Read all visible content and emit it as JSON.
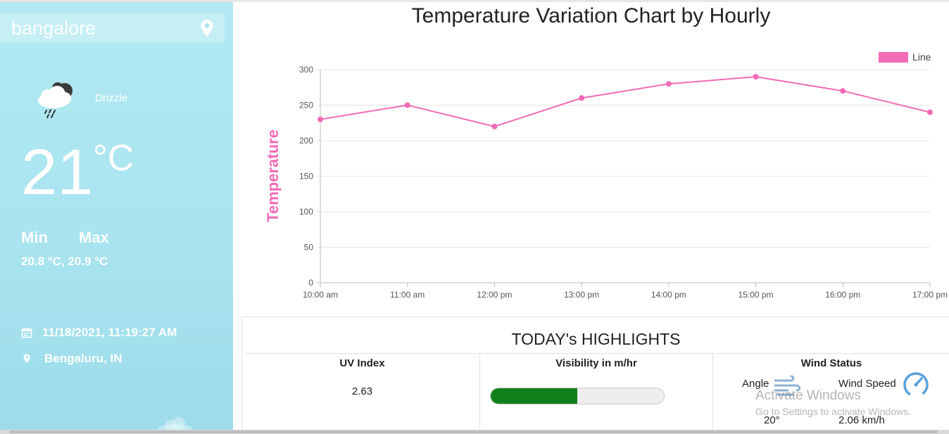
{
  "sidebar": {
    "search": {
      "value": "bangalore",
      "placeholder": "bangalore"
    },
    "condition": "Drizzle",
    "temperature": "21",
    "temp_unit": "°C",
    "min_label": "Min",
    "max_label": "Max",
    "minmax_values": "20.8 °C, 20.9 °C",
    "datetime": "11/18/2021, 11:19:27 AM",
    "location": "Bengaluru, IN"
  },
  "chart": {
    "title": "Temperature Variation Chart by Hourly"
  },
  "chart_data": {
    "type": "line",
    "title": "Temperature Variation Chart by Hourly",
    "ylabel": "Temperature",
    "xlabel": "",
    "categories": [
      "10:00 am",
      "11:00 am",
      "12:00 pm",
      "13:00 pm",
      "14:00 pm",
      "15:00 pm",
      "16:00 pm",
      "17:00 pm"
    ],
    "series": [
      {
        "name": "Line",
        "values": [
          230,
          250,
          220,
          260,
          280,
          290,
          270,
          240
        ],
        "color": "#f26bb5"
      }
    ],
    "ylim": [
      0,
      300
    ],
    "yticks": [
      0,
      50,
      100,
      150,
      200,
      250,
      300
    ],
    "grid": true,
    "legend": "top-right"
  },
  "highlights": {
    "title": "TODAY's HIGHLIGHTS",
    "uv": {
      "title": "UV Index",
      "value": "2.63"
    },
    "visibility": {
      "title": "Visibility in m/hr",
      "fill_fraction": 0.5,
      "color": "#12801a"
    },
    "wind": {
      "title": "Wind Status",
      "angle_label": "Angle",
      "speed_label": "Wind Speed",
      "angle_value": "20°",
      "speed_value": "2.06 km/h"
    }
  },
  "watermark": {
    "line1": "Activate Windows",
    "line2": "Go to Settings to activate Windows."
  },
  "icons": [
    "location-pin-icon",
    "rain-cloud-icon",
    "calendar-icon",
    "map-pin-icon",
    "wind-icon",
    "gauge-icon",
    "cloud-icon"
  ]
}
